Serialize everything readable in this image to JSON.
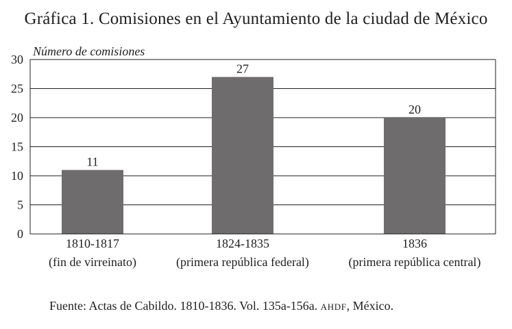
{
  "title": "Gráfica 1. Comisiones en el Ayuntamiento de la ciudad de México",
  "chart_data": {
    "type": "bar",
    "title": "Gráfica 1. Comisiones en el Ayuntamiento de la ciudad de México",
    "ylabel": "Número de comisiones",
    "xlabel": "",
    "ylim": [
      0,
      30
    ],
    "yticks": [
      0,
      5,
      10,
      15,
      20,
      25,
      30
    ],
    "grid": true,
    "categories": [
      {
        "period": "1810-1817",
        "desc": "(fin de virreinato)"
      },
      {
        "period": "1824-1835",
        "desc": "(primera república federal)"
      },
      {
        "period": "1836",
        "desc": "(primera república central)"
      }
    ],
    "values": [
      11,
      27,
      20
    ],
    "bar_color": "#6f6c6d"
  },
  "source": {
    "prefix": "Fuente: Actas de Cabildo. 1810-1836. Vol. 135a-156a.",
    "archive": "AHDF",
    "suffix": ", México."
  }
}
